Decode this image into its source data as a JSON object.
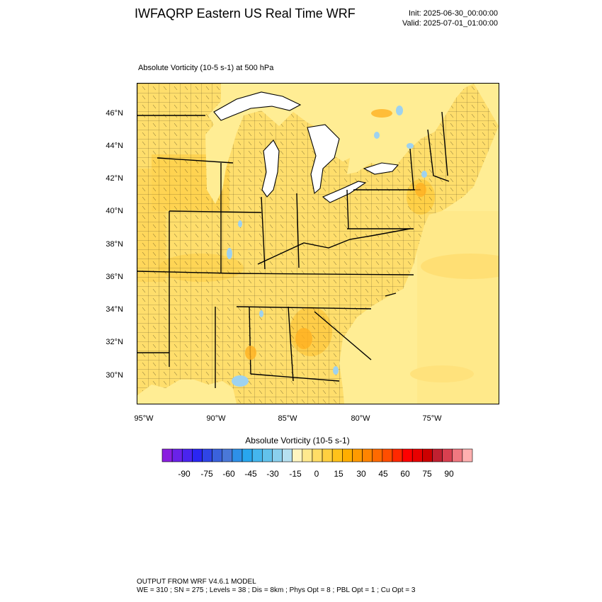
{
  "header": {
    "title": "IWFAQRP Eastern US Real Time WRF",
    "init": "Init: 2025-06-30_00:00:00",
    "valid": "Valid: 2025-07-01_01:00:00"
  },
  "plot": {
    "subtitle": "Absolute Vorticity   (10-5 s-1)     at   500 hPa",
    "lat_labels": [
      "46°N",
      "44°N",
      "42°N",
      "40°N",
      "38°N",
      "36°N",
      "34°N",
      "32°N",
      "30°N"
    ],
    "lon_labels": [
      "95°W",
      "90°W",
      "85°W",
      "80°W",
      "75°W"
    ]
  },
  "colorbar": {
    "title": "Absolute Vorticity  (10-5 s-1)",
    "labels": [
      "-90",
      "-75",
      "-60",
      "-45",
      "-30",
      "-15",
      "0",
      "15",
      "30",
      "45",
      "60",
      "75",
      "90"
    ],
    "colors": [
      "#8a1fe0",
      "#6a22e8",
      "#4a24ee",
      "#2a26f2",
      "#2f45e6",
      "#3a62dc",
      "#4a78d8",
      "#2e90e8",
      "#28a6ee",
      "#44b6ee",
      "#62c2ec",
      "#8ad0ee",
      "#b6e0f0",
      "#fff5c0",
      "#ffe98e",
      "#ffdd66",
      "#ffd040",
      "#ffc21a",
      "#ffae00",
      "#ff9a00",
      "#ff8400",
      "#ff6a00",
      "#ff4e00",
      "#ff2800",
      "#ff0000",
      "#e80000",
      "#cc0000",
      "#c02030",
      "#d84050",
      "#f07880",
      "#ffb0b0"
    ]
  },
  "footer": {
    "line1": "OUTPUT FROM WRF V4.6.1 MODEL",
    "line2": "WE = 310 ; SN = 275 ; Levels = 38 ; Dis = 8km ; Phys Opt = 8 ; PBL Opt = 1 ; Cu Opt = 3"
  }
}
